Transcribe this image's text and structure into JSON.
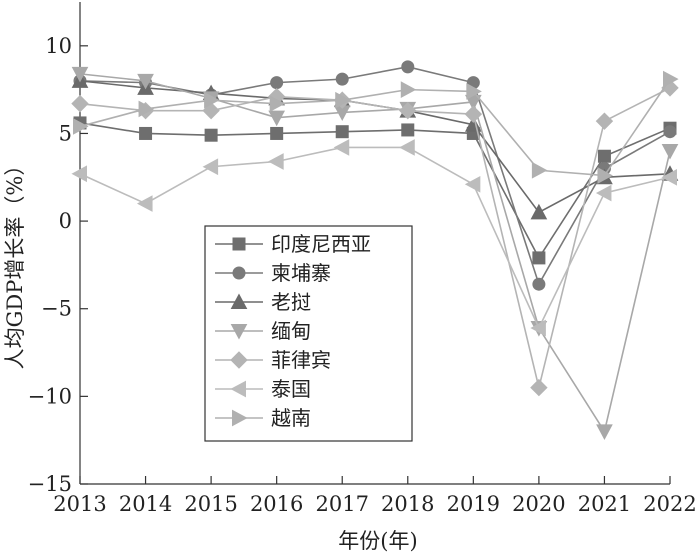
{
  "chart_data": {
    "type": "line",
    "title": "",
    "xlabel": "年份(年)",
    "ylabel": "人均GDP增长率（%）",
    "x": [
      2013,
      2014,
      2015,
      2016,
      2017,
      2018,
      2019,
      2020,
      2021,
      2022
    ],
    "xlim": [
      2013,
      2022
    ],
    "ylim": [
      -15,
      12.5
    ],
    "yticks": [
      10,
      5,
      0,
      -5,
      -10,
      -15
    ],
    "grid": false,
    "legend_position": "center-left",
    "series": [
      {
        "name": "印度尼西亚",
        "marker": "square",
        "color": "#6e6e6e",
        "values": [
          5.6,
          5.0,
          4.9,
          5.0,
          5.1,
          5.2,
          5.0,
          -2.1,
          3.7,
          5.3
        ]
      },
      {
        "name": "柬埔寨",
        "marker": "circle",
        "color": "#7a7a7a",
        "values": [
          8.0,
          7.9,
          7.2,
          7.9,
          8.1,
          8.8,
          7.9,
          -3.6,
          3.0,
          5.1
        ]
      },
      {
        "name": "老挝",
        "marker": "triangle-up",
        "color": "#6a6a6a",
        "values": [
          8.0,
          7.6,
          7.3,
          7.0,
          6.9,
          6.3,
          5.5,
          0.5,
          2.5,
          2.7
        ]
      },
      {
        "name": "缅甸",
        "marker": "triangle-down",
        "color": "#a8a8a8",
        "values": [
          8.4,
          8.0,
          7.0,
          5.9,
          6.2,
          6.4,
          6.8,
          -6.1,
          -12.0,
          4.0
        ]
      },
      {
        "name": "菲律宾",
        "marker": "diamond",
        "color": "#b4b4b4",
        "values": [
          6.7,
          6.3,
          6.3,
          7.1,
          6.9,
          6.3,
          6.1,
          -9.5,
          5.7,
          7.6
        ]
      },
      {
        "name": "泰国",
        "marker": "triangle-left",
        "color": "#bcbcbc",
        "values": [
          2.7,
          1.0,
          3.1,
          3.4,
          4.2,
          4.2,
          2.1,
          -6.1,
          1.6,
          2.5
        ]
      },
      {
        "name": "越南",
        "marker": "triangle-right",
        "color": "#b0b0b0",
        "values": [
          5.4,
          6.4,
          6.9,
          6.7,
          6.9,
          7.5,
          7.4,
          2.9,
          2.6,
          8.1
        ]
      }
    ]
  }
}
